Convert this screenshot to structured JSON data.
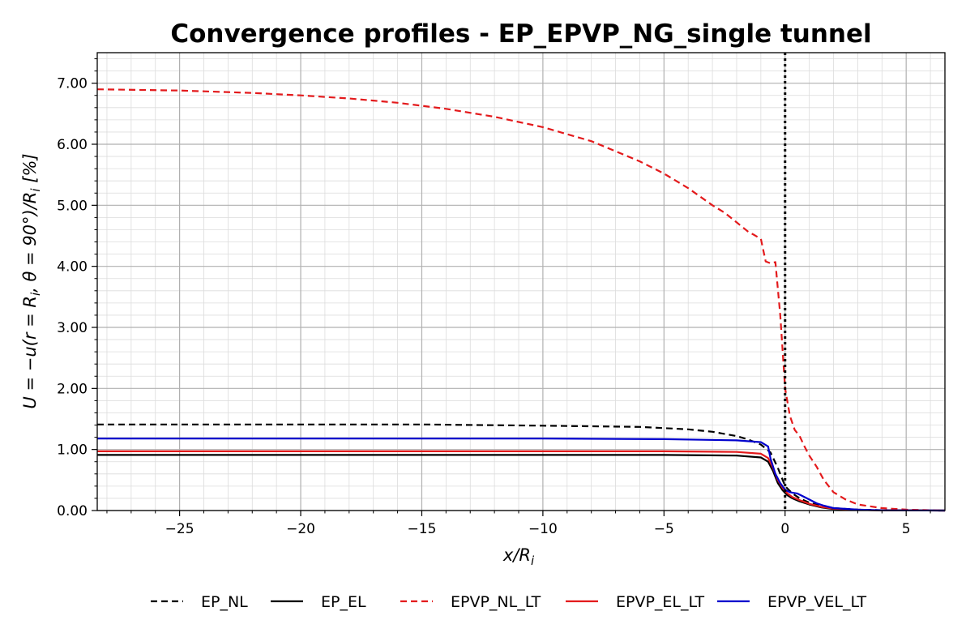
{
  "chart_data": {
    "type": "line",
    "title": "Convergence profiles - EP_EPVP_NG_single tunnel",
    "xlabel_parts": {
      "main": "x/R",
      "sub": "i"
    },
    "ylabel_parts": {
      "a": "U = −u(r = R",
      "sub": "i",
      "b": ", θ = 90°)/R",
      "sub2": "i",
      "c": " [%]"
    },
    "xlim": [
      -28.4,
      6.6
    ],
    "ylim": [
      0.0,
      7.5
    ],
    "x_ticks": [
      -25,
      -20,
      -15,
      -10,
      -5,
      0,
      5
    ],
    "x_tick_labels": [
      "−25",
      "−20",
      "−15",
      "−10",
      "−5",
      "0",
      "5"
    ],
    "y_ticks": [
      0,
      1,
      2,
      3,
      4,
      5,
      6,
      7
    ],
    "y_tick_labels": [
      "0.00",
      "1.00",
      "2.00",
      "3.00",
      "4.00",
      "5.00",
      "6.00",
      "7.00"
    ],
    "grid": true,
    "minor_grid": true,
    "vline_x": 0,
    "legend_position": "bottom-center",
    "series": [
      {
        "name": "EP_NL",
        "color": "#000000",
        "dash": "dashed",
        "x": [
          -28.4,
          -20,
          -15,
          -10,
          -6,
          -4,
          -3,
          -2,
          -1.5,
          -1,
          -0.6,
          -0.3,
          0,
          0.3,
          0.6,
          1,
          1.5,
          2,
          3,
          4,
          5,
          6.6
        ],
        "y": [
          1.41,
          1.41,
          1.41,
          1.39,
          1.37,
          1.33,
          1.29,
          1.22,
          1.16,
          1.08,
          0.95,
          0.7,
          0.4,
          0.28,
          0.2,
          0.13,
          0.07,
          0.04,
          0.015,
          0.005,
          0.002,
          0.0
        ]
      },
      {
        "name": "EP_EL",
        "color": "#000000",
        "dash": "solid",
        "x": [
          -28.4,
          -20,
          -10,
          -5,
          -2,
          -1,
          -0.7,
          -0.5,
          -0.3,
          -0.1,
          0.1,
          0.3,
          0.6,
          1,
          1.5,
          2,
          3,
          4,
          6.6
        ],
        "y": [
          0.91,
          0.91,
          0.91,
          0.91,
          0.9,
          0.87,
          0.8,
          0.65,
          0.45,
          0.33,
          0.25,
          0.2,
          0.15,
          0.1,
          0.05,
          0.025,
          0.01,
          0.003,
          0.0
        ]
      },
      {
        "name": "EPVP_NL_LT",
        "color": "#e31a1c",
        "dash": "dashed",
        "x": [
          -28.4,
          -25,
          -22,
          -20,
          -18,
          -16,
          -14,
          -12,
          -10,
          -8,
          -6,
          -5,
          -4,
          -3,
          -2.5,
          -2,
          -1.5,
          -1.3,
          -1,
          -0.8,
          -0.6,
          -0.4,
          -0.2,
          0,
          0.2,
          0.4,
          0.6,
          0.8,
          1,
          1.3,
          1.6,
          2,
          2.5,
          3,
          4,
          5,
          6.6
        ],
        "y": [
          6.9,
          6.88,
          6.84,
          6.8,
          6.75,
          6.68,
          6.58,
          6.45,
          6.28,
          6.05,
          5.72,
          5.52,
          5.28,
          5.0,
          4.88,
          4.72,
          4.56,
          4.52,
          4.45,
          4.08,
          4.05,
          4.07,
          3.2,
          2.0,
          1.55,
          1.32,
          1.22,
          1.05,
          0.9,
          0.72,
          0.5,
          0.3,
          0.18,
          0.1,
          0.04,
          0.015,
          0.0
        ]
      },
      {
        "name": "EPVP_EL_LT",
        "color": "#e31a1c",
        "dash": "solid",
        "x": [
          -28.4,
          -20,
          -10,
          -5,
          -2,
          -1,
          -0.7,
          -0.5,
          -0.3,
          -0.1,
          0.1,
          0.3,
          0.6,
          1,
          1.5,
          2,
          3,
          4,
          6.6
        ],
        "y": [
          0.97,
          0.97,
          0.97,
          0.97,
          0.96,
          0.93,
          0.86,
          0.7,
          0.5,
          0.37,
          0.28,
          0.22,
          0.17,
          0.11,
          0.06,
          0.03,
          0.01,
          0.003,
          0.0
        ]
      },
      {
        "name": "EPVP_VEL_LT",
        "color": "#0000cd",
        "dash": "solid",
        "x": [
          -28.4,
          -20,
          -10,
          -5,
          -2,
          -1,
          -0.7,
          -0.6,
          -0.4,
          -0.2,
          0,
          0.2,
          0.5,
          0.8,
          1,
          1.3,
          1.6,
          2,
          3,
          4,
          6.6
        ],
        "y": [
          1.18,
          1.18,
          1.18,
          1.17,
          1.15,
          1.12,
          1.05,
          0.85,
          0.6,
          0.45,
          0.34,
          0.3,
          0.28,
          0.22,
          0.18,
          0.12,
          0.08,
          0.04,
          0.015,
          0.004,
          0.0
        ]
      }
    ]
  }
}
